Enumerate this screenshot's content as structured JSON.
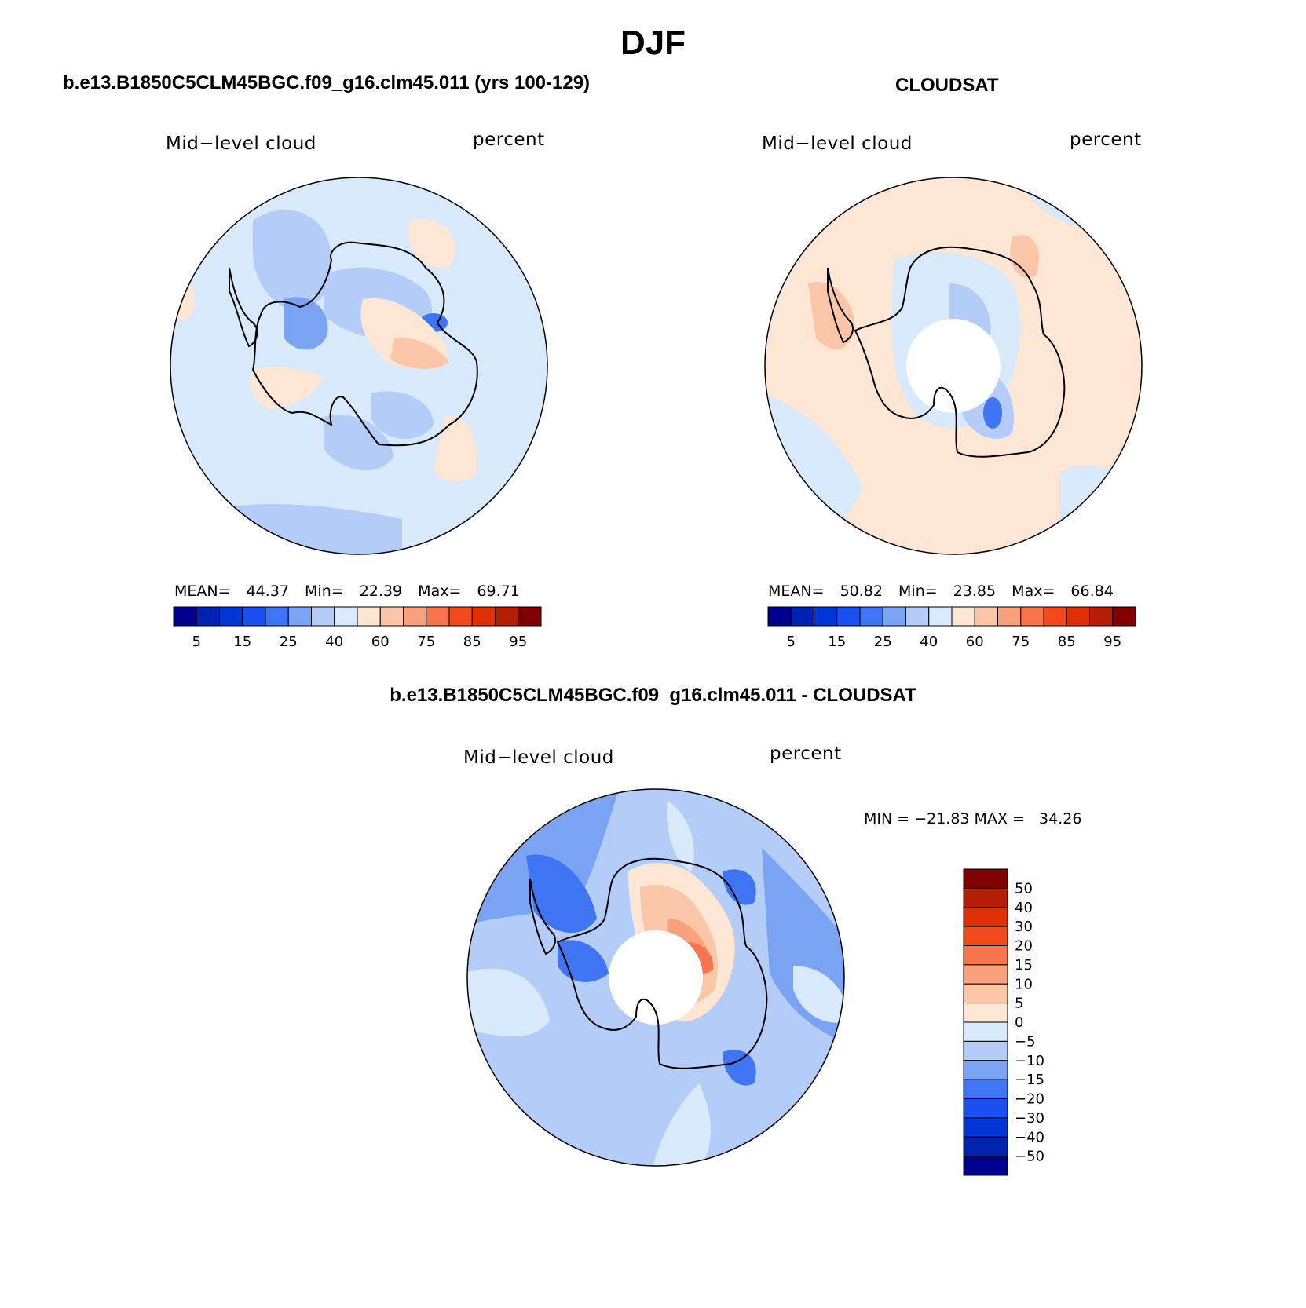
{
  "main_title": "DJF",
  "panels": [
    {
      "title": "b.e13.B1850C5CLM45BGC.f09_g16.clm45.011 (yrs 100-129)",
      "left_label": "Mid−level cloud",
      "right_label": "percent",
      "stats": {
        "mean_label": "MEAN=",
        "mean": "44.37",
        "min_label": "Min=",
        "min": "22.39",
        "max_label": "Max=",
        "max": "69.71"
      }
    },
    {
      "title": "CLOUDSAT",
      "left_label": "Mid−level cloud",
      "right_label": "percent",
      "stats": {
        "mean_label": "MEAN=",
        "mean": "50.82",
        "min_label": "Min=",
        "min": "23.85",
        "max_label": "Max=",
        "max": "66.84"
      }
    },
    {
      "title": "b.e13.B1850C5CLM45BGC.f09_g16.clm45.011 - CLOUDSAT",
      "left_label": "Mid−level cloud",
      "right_label": "percent",
      "stats_text": "MIN = −21.83 MAX =   34.26"
    }
  ],
  "chart_data": [
    {
      "type": "heatmap",
      "projection": "south polar stereographic",
      "title": "b.e13.B1850C5CLM45BGC.f09_g16.clm45.011 (yrs 100-129)",
      "variable": "Mid-level cloud",
      "units": "percent",
      "mean": 44.37,
      "min": 22.39,
      "max": 69.71,
      "colorbar_labels": [
        "5",
        "15",
        "25",
        "40",
        "60",
        "75",
        "85",
        "95"
      ],
      "colorbar_levels": [
        5,
        10,
        15,
        20,
        25,
        30,
        40,
        50,
        60,
        70,
        75,
        80,
        85,
        90,
        95
      ]
    },
    {
      "type": "heatmap",
      "projection": "south polar stereographic",
      "title": "CLOUDSAT",
      "variable": "Mid-level cloud",
      "units": "percent",
      "mean": 50.82,
      "min": 23.85,
      "max": 66.84,
      "colorbar_labels": [
        "5",
        "15",
        "25",
        "40",
        "60",
        "75",
        "85",
        "95"
      ],
      "colorbar_levels": [
        5,
        10,
        15,
        20,
        25,
        30,
        40,
        50,
        60,
        70,
        75,
        80,
        85,
        90,
        95
      ]
    },
    {
      "type": "heatmap",
      "projection": "south polar stereographic",
      "title": "b.e13.B1850C5CLM45BGC.f09_g16.clm45.011 - CLOUDSAT",
      "variable": "Mid-level cloud",
      "units": "percent",
      "min": -21.83,
      "max": 34.26,
      "colorbar_labels": [
        "50",
        "40",
        "30",
        "20",
        "15",
        "10",
        "5",
        "0",
        "−5",
        "−10",
        "−15",
        "−20",
        "−30",
        "−40",
        "−50"
      ],
      "colorbar_levels": [
        50,
        40,
        30,
        20,
        15,
        10,
        5,
        0,
        -5,
        -10,
        -15,
        -20,
        -30,
        -40,
        -50
      ]
    }
  ],
  "colors": {
    "seq": [
      "#00008c",
      "#0022b0",
      "#0035d6",
      "#1a4ff0",
      "#3f74f2",
      "#7ba3f3",
      "#b3ccf8",
      "#d8e9fb",
      "#fde6d4",
      "#fbc6a8",
      "#f9a07c",
      "#f7744c",
      "#f24a1c",
      "#de2f05",
      "#b41e02",
      "#800000"
    ],
    "div": [
      "#800000",
      "#b41e02",
      "#de2f05",
      "#f24a1c",
      "#f7744c",
      "#f9a07c",
      "#fbc6a8",
      "#fde6d4",
      "#d8e9fb",
      "#b3ccf8",
      "#7ba3f3",
      "#3f74f2",
      "#1a4ff0",
      "#0035d6",
      "#0022b0",
      "#00008c"
    ]
  }
}
